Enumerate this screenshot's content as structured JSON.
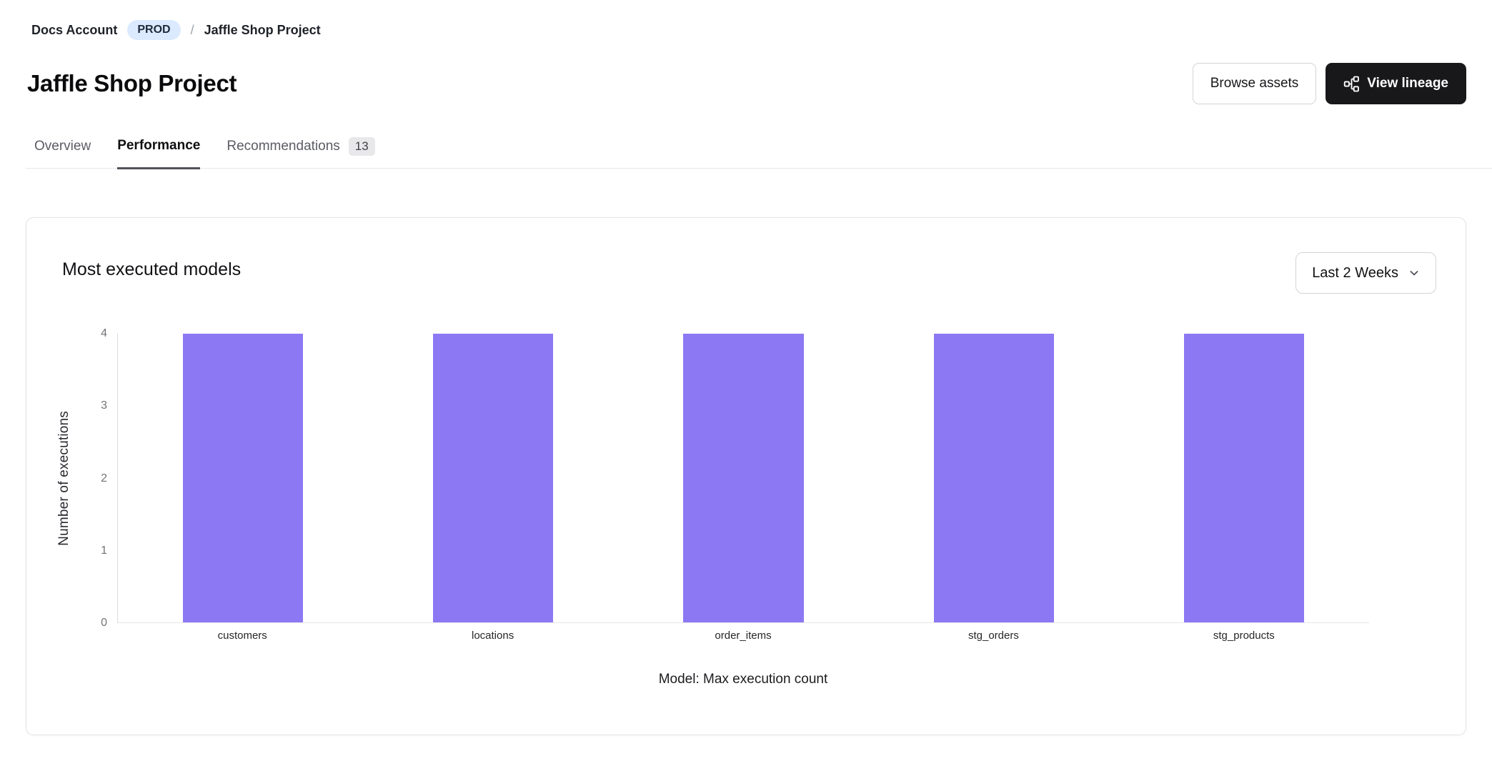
{
  "breadcrumb": {
    "account_label": "Docs Account",
    "env_badge": "PROD",
    "separator": "/",
    "project_label": "Jaffle Shop Project"
  },
  "header": {
    "title": "Jaffle Shop Project",
    "browse_assets_label": "Browse assets",
    "view_lineage_label": "View lineage"
  },
  "tabs": [
    {
      "label": "Overview",
      "active": false
    },
    {
      "label": "Performance",
      "active": true
    },
    {
      "label": "Recommendations",
      "active": false,
      "badge": "13"
    }
  ],
  "card": {
    "title": "Most executed models",
    "range_selector_value": "Last 2 Weeks"
  },
  "chart_data": {
    "type": "bar",
    "categories": [
      "customers",
      "locations",
      "order_items",
      "stg_orders",
      "stg_products"
    ],
    "values": [
      4,
      4,
      4,
      4,
      4
    ],
    "title": "Most executed models",
    "xlabel": "Model: Max execution count",
    "ylabel": "Number of executions",
    "ylim": [
      0,
      4
    ],
    "yticks": [
      0,
      1,
      2,
      3,
      4
    ],
    "bar_color": "#8c78f3",
    "grid": false,
    "legend": false
  },
  "colors": {
    "accent_purple": "#8c78f3",
    "env_badge_bg": "#dbeafe",
    "primary_button_bg": "#18181b",
    "card_border": "#e4e4e7",
    "tab_underline": "#52525b"
  },
  "icons": {
    "view_lineage": "lineage-graph-icon",
    "range_selector": "chevron-down-icon"
  }
}
